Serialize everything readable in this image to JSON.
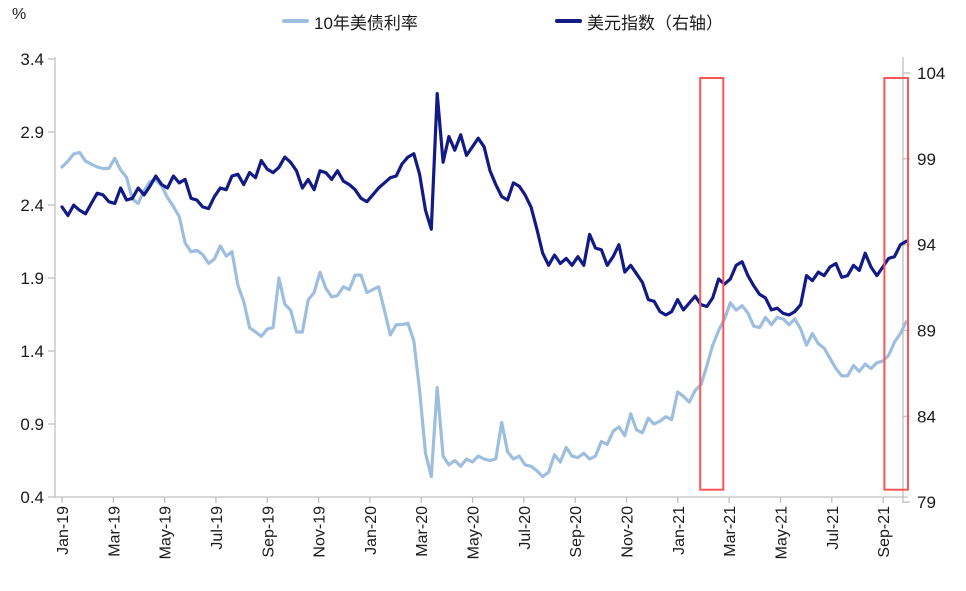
{
  "y_left_unit": "%",
  "legend": [
    {
      "label": "10年美债利率",
      "color": "#9EBEE0"
    },
    {
      "label": "美元指数（右轴）",
      "color": "#121B85"
    }
  ],
  "chart_data": {
    "type": "line",
    "title": "",
    "x_axis": {
      "tick_labels": [
        "Jan-19",
        "Mar-19",
        "May-19",
        "Jul-19",
        "Sep-19",
        "Nov-19",
        "Jan-20",
        "Mar-20",
        "May-20",
        "Jul-20",
        "Sep-20",
        "Nov-20",
        "Jan-21",
        "Mar-21",
        "May-21",
        "Jul-21",
        "Sep-21"
      ],
      "months_per_tick": 2,
      "span_months": 32.9,
      "points_per_month": "weekly"
    },
    "y_left": {
      "unit": "%",
      "min": 0.4,
      "max": 3.4,
      "ticks": [
        3.4,
        2.9,
        2.4,
        1.9,
        1.4,
        0.9,
        0.4
      ]
    },
    "y_right": {
      "min": 79,
      "max": 104,
      "ticks": [
        104,
        99,
        94,
        89,
        84,
        79
      ]
    },
    "grid": "off",
    "legend_position": "top-center",
    "axis_color": "#BFBFBF",
    "series": [
      {
        "name": "10年美债利率",
        "axis": "left",
        "color": "#9EBEE0",
        "values": [
          2.66,
          2.7,
          2.75,
          2.76,
          2.7,
          2.68,
          2.66,
          2.65,
          2.65,
          2.72,
          2.64,
          2.59,
          2.44,
          2.41,
          2.5,
          2.56,
          2.57,
          2.53,
          2.45,
          2.39,
          2.32,
          2.14,
          2.08,
          2.09,
          2.06,
          2.0,
          2.03,
          2.12,
          2.05,
          2.08,
          1.85,
          1.74,
          1.56,
          1.53,
          1.5,
          1.55,
          1.56,
          1.9,
          1.72,
          1.68,
          1.53,
          1.53,
          1.75,
          1.8,
          1.94,
          1.83,
          1.77,
          1.78,
          1.84,
          1.82,
          1.92,
          1.92,
          1.8,
          1.82,
          1.84,
          1.68,
          1.51,
          1.58,
          1.58,
          1.59,
          1.47,
          1.13,
          0.7,
          0.54,
          1.15,
          0.68,
          0.62,
          0.65,
          0.61,
          0.66,
          0.64,
          0.68,
          0.66,
          0.65,
          0.66,
          0.91,
          0.71,
          0.66,
          0.68,
          0.62,
          0.61,
          0.58,
          0.54,
          0.57,
          0.69,
          0.64,
          0.74,
          0.68,
          0.67,
          0.7,
          0.66,
          0.68,
          0.78,
          0.76,
          0.85,
          0.88,
          0.82,
          0.97,
          0.86,
          0.84,
          0.94,
          0.9,
          0.92,
          0.95,
          0.93,
          1.12,
          1.09,
          1.05,
          1.13,
          1.17,
          1.3,
          1.44,
          1.54,
          1.62,
          1.73,
          1.68,
          1.71,
          1.66,
          1.57,
          1.56,
          1.63,
          1.58,
          1.63,
          1.62,
          1.58,
          1.62,
          1.55,
          1.44,
          1.52,
          1.45,
          1.42,
          1.35,
          1.28,
          1.23,
          1.23,
          1.3,
          1.26,
          1.31,
          1.28,
          1.32,
          1.33,
          1.37,
          1.46,
          1.52,
          1.6
        ]
      },
      {
        "name": "美元指数（右轴）",
        "axis": "right",
        "color": "#121B85",
        "values": [
          96.2,
          95.7,
          96.3,
          96.0,
          95.8,
          96.4,
          97.0,
          96.9,
          96.5,
          96.4,
          97.3,
          96.6,
          96.7,
          97.3,
          96.9,
          97.4,
          98.0,
          97.5,
          97.3,
          98.0,
          97.6,
          97.8,
          96.7,
          96.6,
          96.2,
          96.1,
          96.8,
          97.3,
          97.2,
          98.0,
          98.1,
          97.5,
          98.2,
          97.9,
          98.9,
          98.4,
          98.2,
          98.5,
          99.1,
          98.8,
          98.3,
          97.3,
          97.8,
          97.2,
          98.3,
          98.2,
          97.8,
          98.3,
          97.7,
          97.5,
          97.2,
          96.7,
          96.5,
          96.9,
          97.3,
          97.6,
          97.9,
          98.0,
          98.7,
          99.1,
          99.3,
          98.1,
          96.0,
          94.9,
          102.8,
          98.8,
          100.3,
          99.5,
          100.4,
          99.2,
          99.7,
          100.2,
          99.7,
          98.3,
          97.5,
          96.8,
          96.6,
          97.6,
          97.4,
          96.9,
          96.2,
          94.9,
          93.5,
          92.8,
          93.4,
          92.9,
          93.2,
          92.8,
          93.3,
          92.8,
          94.6,
          93.8,
          93.7,
          92.8,
          93.3,
          94.0,
          92.4,
          92.8,
          92.3,
          91.8,
          90.8,
          90.7,
          90.1,
          89.9,
          90.1,
          90.8,
          90.2,
          90.6,
          91.0,
          90.5,
          90.4,
          90.9,
          92.0,
          91.7,
          92.0,
          92.8,
          93.0,
          92.2,
          91.6,
          91.1,
          90.9,
          90.2,
          90.3,
          90.0,
          89.9,
          90.1,
          90.5,
          92.2,
          91.9,
          92.4,
          92.2,
          92.7,
          92.9,
          92.1,
          92.2,
          92.8,
          92.5,
          93.5,
          92.7,
          92.2,
          92.7,
          93.2,
          93.3,
          94.0,
          94.2
        ]
      }
    ],
    "highlight_boxes": [
      {
        "note": "Feb-2021 episode",
        "x_start_month": 24.87,
        "x_end_month": 25.77,
        "y_top_left_axis": 3.27,
        "y_bottom_left_axis": 0.45,
        "color": "#FB5555"
      },
      {
        "note": "Sep/Oct-2021 episode",
        "x_start_month": 32.05,
        "x_end_month": 32.97,
        "y_top_left_axis": 3.27,
        "y_bottom_left_axis": 0.45,
        "color": "#FB5555"
      }
    ]
  }
}
